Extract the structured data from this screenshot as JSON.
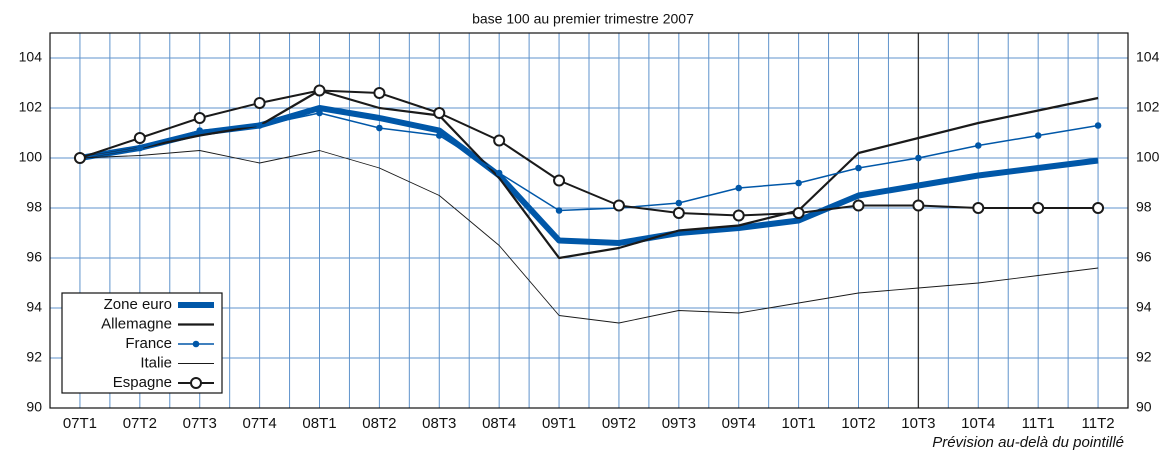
{
  "chart_data": {
    "type": "line",
    "subtitle": "base 100 au premier trimestre 2007",
    "note": "Prévision au-delà du pointillé",
    "categories": [
      "07T1",
      "07T2",
      "07T3",
      "07T4",
      "08T1",
      "08T2",
      "08T3",
      "08T4",
      "09T1",
      "09T2",
      "09T3",
      "09T4",
      "10T1",
      "10T2",
      "10T3",
      "10T4",
      "11T1",
      "11T2"
    ],
    "series": [
      {
        "name": "Zone euro",
        "color": "#0057a8",
        "width": 6,
        "marker": "none",
        "values": [
          100,
          100.4,
          101.0,
          101.3,
          102.0,
          101.6,
          101.1,
          99.3,
          96.7,
          96.6,
          97.0,
          97.2,
          97.5,
          98.5,
          98.9,
          99.3,
          99.6,
          99.9
        ]
      },
      {
        "name": "Allemagne",
        "color": "#1a1a1a",
        "width": 2.2,
        "marker": "none",
        "values": [
          100,
          100.4,
          100.9,
          101.3,
          102.7,
          102.0,
          101.7,
          99.2,
          96.0,
          96.4,
          97.1,
          97.3,
          97.9,
          100.2,
          100.8,
          101.4,
          101.9,
          102.4
        ]
      },
      {
        "name": "France",
        "color": "#0057a8",
        "width": 1.5,
        "marker": "dot",
        "values": [
          100,
          100.4,
          101.1,
          101.3,
          101.8,
          101.2,
          100.9,
          99.4,
          97.9,
          98.0,
          98.2,
          98.8,
          99.0,
          99.6,
          100.0,
          100.5,
          100.9,
          101.3
        ]
      },
      {
        "name": "Italie",
        "color": "#1a1a1a",
        "width": 0.9,
        "marker": "none",
        "values": [
          100,
          100.1,
          100.3,
          99.8,
          100.3,
          99.6,
          98.5,
          96.5,
          93.7,
          93.4,
          93.9,
          93.8,
          94.2,
          94.6,
          94.8,
          95.0,
          95.3,
          95.6
        ]
      },
      {
        "name": "Espagne",
        "color": "#1a1a1a",
        "width": 2,
        "marker": "circle",
        "values": [
          100,
          100.8,
          101.6,
          102.2,
          102.7,
          102.6,
          101.8,
          100.7,
          99.1,
          98.1,
          97.8,
          97.7,
          97.8,
          98.1,
          98.1,
          98.0,
          98.0,
          98.0
        ]
      }
    ],
    "ylim": [
      90,
      105
    ],
    "yticks": [
      90,
      92,
      94,
      96,
      98,
      100,
      102,
      104
    ],
    "grid": true,
    "grid_color": "#5f93cc",
    "forecast_line_at": "10T3",
    "legend": "lower left"
  }
}
